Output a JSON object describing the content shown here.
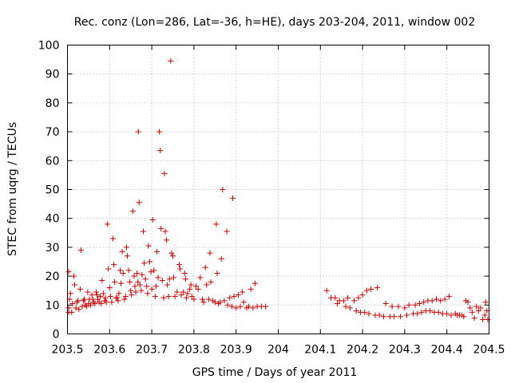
{
  "chart_data": {
    "type": "scatter",
    "title": "Rec. conz (Lon=286, Lat=-36, h=HE), days 203-204, 2011, window 002",
    "xlabel": "GPS time / Days of year 2011",
    "ylabel": "STEC from uqrg / TECUs",
    "xlim": [
      203.5,
      204.5
    ],
    "ylim": [
      0,
      100
    ],
    "xticks": [
      203.5,
      203.6,
      203.7,
      203.8,
      203.9,
      204,
      204.1,
      204.2,
      204.3,
      204.4,
      204.5
    ],
    "xtick_labels": [
      "203.5",
      "203.6",
      "203.7",
      "203.8",
      "203.9",
      "204",
      "204.1",
      "204.2",
      "204.3",
      "204.4",
      "204.5"
    ],
    "yticks": [
      0,
      10,
      20,
      30,
      40,
      50,
      60,
      70,
      80,
      90,
      100
    ],
    "ytick_labels": [
      "0",
      "10",
      "20",
      "30",
      "40",
      "50",
      "60",
      "70",
      "80",
      "90",
      "100"
    ],
    "grid": true,
    "marker": "plus",
    "marker_color": "#cc0000",
    "series": [
      {
        "name": "STEC",
        "points": [
          [
            203.503,
            21.5
          ],
          [
            203.503,
            9.0
          ],
          [
            203.503,
            7.5
          ],
          [
            203.505,
            12.0
          ],
          [
            203.507,
            14.0
          ],
          [
            203.51,
            7.5
          ],
          [
            203.512,
            10.5
          ],
          [
            203.515,
            20.0
          ],
          [
            203.517,
            17.0
          ],
          [
            203.52,
            9.0
          ],
          [
            203.522,
            11.0
          ],
          [
            203.525,
            11.5
          ],
          [
            203.527,
            8.5
          ],
          [
            203.53,
            15.5
          ],
          [
            203.532,
            29.0
          ],
          [
            203.535,
            9.5
          ],
          [
            203.538,
            11.5
          ],
          [
            203.54,
            12.0
          ],
          [
            203.542,
            10.0
          ],
          [
            203.545,
            9.5
          ],
          [
            203.548,
            14.5
          ],
          [
            203.55,
            10.5
          ],
          [
            203.552,
            12.0
          ],
          [
            203.555,
            10.0
          ],
          [
            203.558,
            13.5
          ],
          [
            203.56,
            12.0
          ],
          [
            203.562,
            11.0
          ],
          [
            203.565,
            10.5
          ],
          [
            203.568,
            14.5
          ],
          [
            203.57,
            13.5
          ],
          [
            203.572,
            12.0
          ],
          [
            203.575,
            11.0
          ],
          [
            203.578,
            13.0
          ],
          [
            203.58,
            10.5
          ],
          [
            203.582,
            18.5
          ],
          [
            203.585,
            14.0
          ],
          [
            203.588,
            11.5
          ],
          [
            203.59,
            12.5
          ],
          [
            203.592,
            11.0
          ],
          [
            203.595,
            38.0
          ],
          [
            203.597,
            22.5
          ],
          [
            203.6,
            16.0
          ],
          [
            203.602,
            13.0
          ],
          [
            203.605,
            11.0
          ],
          [
            203.608,
            33.0
          ],
          [
            203.61,
            24.0
          ],
          [
            203.612,
            18.0
          ],
          [
            203.615,
            12.5
          ],
          [
            203.618,
            12.5
          ],
          [
            203.62,
            11.5
          ],
          [
            203.622,
            14.0
          ],
          [
            203.625,
            22.0
          ],
          [
            203.627,
            17.5
          ],
          [
            203.63,
            28.5
          ],
          [
            203.632,
            21.0
          ],
          [
            203.635,
            12.0
          ],
          [
            203.638,
            13.0
          ],
          [
            203.64,
            30.0
          ],
          [
            203.642,
            27.0
          ],
          [
            203.645,
            22.0
          ],
          [
            203.648,
            18.0
          ],
          [
            203.65,
            15.0
          ],
          [
            203.652,
            13.5
          ],
          [
            203.655,
            42.5
          ],
          [
            203.658,
            20.0
          ],
          [
            203.66,
            16.5
          ],
          [
            203.662,
            14.5
          ],
          [
            203.665,
            21.0
          ],
          [
            203.667,
            18.0
          ],
          [
            203.668,
            70.0
          ],
          [
            203.67,
            45.5
          ],
          [
            203.672,
            17.0
          ],
          [
            203.675,
            15.0
          ],
          [
            203.677,
            20.5
          ],
          [
            203.68,
            35.5
          ],
          [
            203.682,
            24.5
          ],
          [
            203.685,
            19.0
          ],
          [
            203.688,
            16.5
          ],
          [
            203.69,
            14.0
          ],
          [
            203.692,
            30.5
          ],
          [
            203.695,
            25.0
          ],
          [
            203.698,
            21.5
          ],
          [
            203.7,
            15.5
          ],
          [
            203.702,
            39.5
          ],
          [
            203.705,
            22.0
          ],
          [
            203.708,
            13.0
          ],
          [
            203.71,
            16.5
          ],
          [
            203.712,
            28.5
          ],
          [
            203.715,
            19.5
          ],
          [
            203.718,
            70.0
          ],
          [
            203.72,
            63.5
          ],
          [
            203.722,
            36.5
          ],
          [
            203.725,
            18.5
          ],
          [
            203.728,
            12.5
          ],
          [
            203.73,
            55.5
          ],
          [
            203.732,
            35.5
          ],
          [
            203.735,
            32.5
          ],
          [
            203.737,
            17.0
          ],
          [
            203.74,
            13.0
          ],
          [
            203.742,
            19.0
          ],
          [
            203.745,
            94.5
          ],
          [
            203.747,
            28.0
          ],
          [
            203.75,
            27.0
          ],
          [
            203.752,
            19.5
          ],
          [
            203.755,
            13.0
          ],
          [
            203.76,
            14.5
          ],
          [
            203.765,
            24.0
          ],
          [
            203.767,
            22.5
          ],
          [
            203.77,
            13.5
          ],
          [
            203.775,
            14.5
          ],
          [
            203.778,
            21.0
          ],
          [
            203.78,
            19.0
          ],
          [
            203.782,
            12.5
          ],
          [
            203.785,
            14.0
          ],
          [
            203.79,
            15.5
          ],
          [
            203.793,
            17.0
          ],
          [
            203.795,
            13.0
          ],
          [
            203.8,
            12.0
          ],
          [
            203.805,
            16.5
          ],
          [
            203.81,
            15.5
          ],
          [
            203.815,
            19.5
          ],
          [
            203.82,
            12.0
          ],
          [
            203.823,
            11.0
          ],
          [
            203.827,
            23.0
          ],
          [
            203.83,
            17.0
          ],
          [
            203.835,
            12.0
          ],
          [
            203.838,
            28.0
          ],
          [
            203.84,
            18.0
          ],
          [
            203.845,
            11.5
          ],
          [
            203.85,
            11.0
          ],
          [
            203.853,
            38.0
          ],
          [
            203.855,
            21.0
          ],
          [
            203.858,
            10.5
          ],
          [
            203.862,
            11.0
          ],
          [
            203.865,
            26.0
          ],
          [
            203.868,
            50.0
          ],
          [
            203.872,
            11.5
          ],
          [
            203.878,
            35.5
          ],
          [
            203.88,
            10.0
          ],
          [
            203.885,
            12.5
          ],
          [
            203.89,
            9.5
          ],
          [
            203.892,
            47.0
          ],
          [
            203.895,
            13.0
          ],
          [
            203.9,
            9.0
          ],
          [
            203.905,
            13.5
          ],
          [
            203.91,
            9.5
          ],
          [
            203.915,
            14.5
          ],
          [
            203.918,
            11.0
          ],
          [
            203.925,
            9.0
          ],
          [
            203.93,
            9.5
          ],
          [
            203.935,
            15.5
          ],
          [
            203.94,
            9.0
          ],
          [
            203.945,
            17.5
          ],
          [
            203.95,
            9.5
          ],
          [
            203.96,
            9.5
          ],
          [
            203.97,
            9.5
          ],
          [
            204.115,
            15.0
          ],
          [
            204.125,
            12.5
          ],
          [
            204.135,
            12.5
          ],
          [
            204.14,
            10.5
          ],
          [
            204.145,
            11.5
          ],
          [
            204.155,
            11.5
          ],
          [
            204.16,
            9.5
          ],
          [
            204.165,
            12.5
          ],
          [
            204.17,
            9.0
          ],
          [
            204.18,
            11.5
          ],
          [
            204.185,
            8.0
          ],
          [
            204.19,
            12.5
          ],
          [
            204.195,
            7.5
          ],
          [
            204.2,
            13.5
          ],
          [
            204.205,
            7.5
          ],
          [
            204.21,
            15.0
          ],
          [
            204.215,
            7.0
          ],
          [
            204.22,
            15.5
          ],
          [
            204.23,
            6.5
          ],
          [
            204.235,
            16.0
          ],
          [
            204.24,
            6.5
          ],
          [
            204.25,
            6.0
          ],
          [
            204.255,
            10.5
          ],
          [
            204.265,
            6.0
          ],
          [
            204.27,
            9.5
          ],
          [
            204.275,
            6.0
          ],
          [
            204.285,
            9.5
          ],
          [
            204.29,
            6.0
          ],
          [
            204.3,
            9.0
          ],
          [
            204.305,
            6.5
          ],
          [
            204.31,
            10.0
          ],
          [
            204.32,
            7.0
          ],
          [
            204.325,
            10.0
          ],
          [
            204.33,
            7.0
          ],
          [
            204.335,
            10.5
          ],
          [
            204.34,
            7.5
          ],
          [
            204.345,
            11.0
          ],
          [
            204.35,
            8.0
          ],
          [
            204.355,
            11.5
          ],
          [
            204.36,
            8.0
          ],
          [
            204.365,
            11.5
          ],
          [
            204.37,
            7.5
          ],
          [
            204.375,
            12.0
          ],
          [
            204.38,
            7.5
          ],
          [
            204.385,
            11.5
          ],
          [
            204.39,
            7.0
          ],
          [
            204.395,
            12.0
          ],
          [
            204.4,
            7.0
          ],
          [
            204.405,
            13.0
          ],
          [
            204.41,
            6.5
          ],
          [
            204.42,
            7.0
          ],
          [
            204.425,
            6.5
          ],
          [
            204.43,
            6.5
          ],
          [
            204.435,
            6.5
          ],
          [
            204.44,
            6.0
          ],
          [
            204.445,
            11.5
          ],
          [
            204.45,
            11.0
          ],
          [
            204.455,
            9.0
          ],
          [
            204.46,
            7.5
          ],
          [
            204.465,
            5.5
          ],
          [
            204.47,
            9.5
          ],
          [
            204.475,
            8.0
          ],
          [
            204.48,
            9.0
          ],
          [
            204.485,
            5.0
          ],
          [
            204.49,
            6.5
          ],
          [
            204.492,
            11.0
          ],
          [
            204.495,
            8.0
          ],
          [
            204.497,
            5.0
          ]
        ]
      }
    ]
  }
}
